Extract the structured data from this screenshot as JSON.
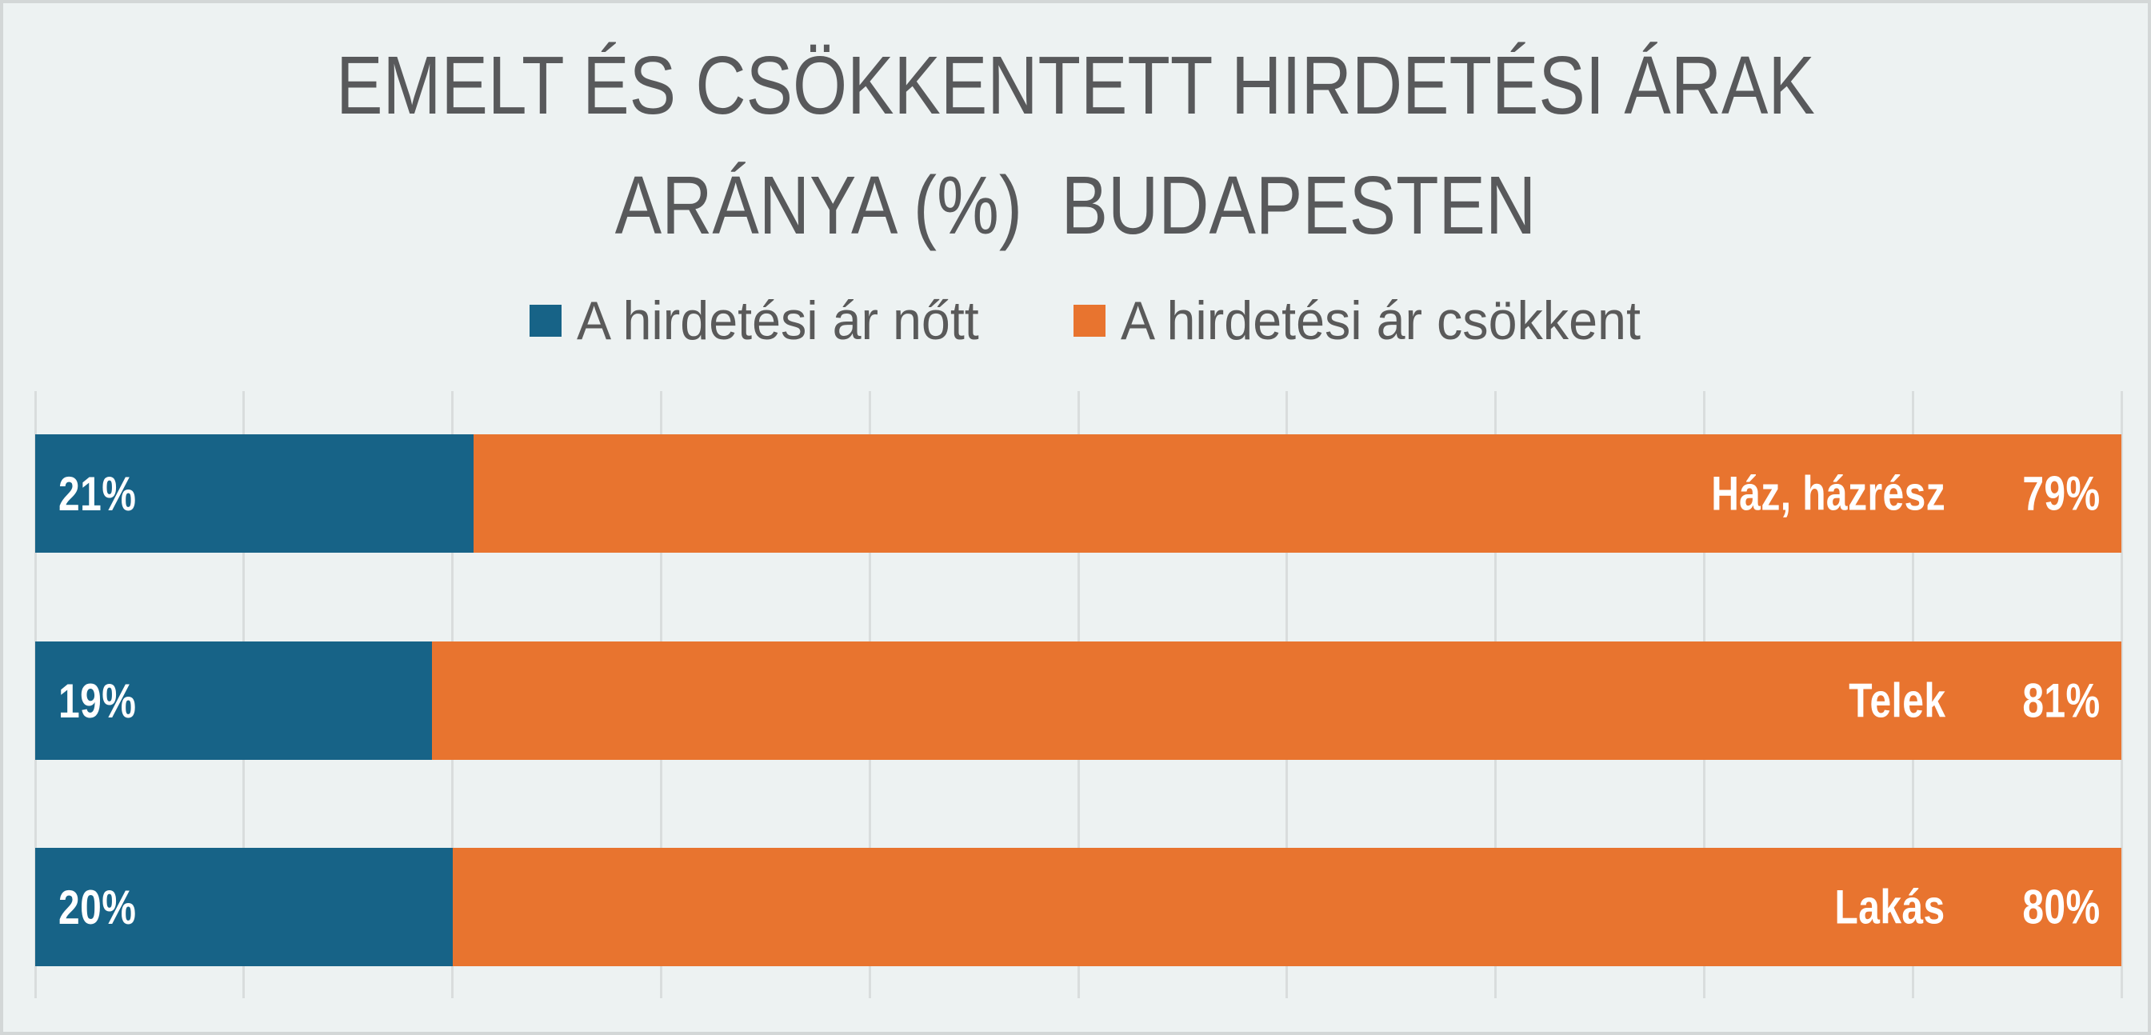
{
  "title": {
    "line1": "EMELT ÉS CSÖKKENTETT HIRDETÉSI ÁRAK",
    "line2": "ARÁNYA (%)  BUDAPESTEN"
  },
  "legend": [
    {
      "label": "A hirdetési ár nőtt",
      "color": "#176387"
    },
    {
      "label": "A hirdetési ár csökkent",
      "color": "#E8742F"
    }
  ],
  "chart_data": {
    "type": "bar",
    "orientation": "horizontal",
    "stacked": true,
    "title": "EMELT ÉS CSÖKKENTETT HIRDETÉSI ÁRAK ARÁNYA (%) BUDAPESTEN",
    "categories": [
      "Ház, házrész",
      "Telek",
      "Lakás"
    ],
    "series": [
      {
        "name": "A hirdetési ár nőtt",
        "color": "#176387",
        "values": [
          21,
          19,
          20
        ]
      },
      {
        "name": "A hirdetési ár csökkent",
        "color": "#E8742F",
        "values": [
          79,
          81,
          80
        ]
      }
    ],
    "data_labels": {
      "increased": [
        "21%",
        "19%",
        "20%"
      ],
      "decreased": [
        "79%",
        "81%",
        "80%"
      ]
    },
    "value_suffix": "%",
    "xlim": [
      0,
      100
    ],
    "gridline_step": 10,
    "grid": true,
    "legend_position": "top",
    "xlabel": "",
    "ylabel": ""
  },
  "colors": {
    "background": "#EDF2F2",
    "border": "#D3D7D7",
    "gridline": "#D9DDDD",
    "title_text": "#58595B",
    "legend_text": "#5A5A5A",
    "bar_label_text": "#FFFFFF"
  }
}
